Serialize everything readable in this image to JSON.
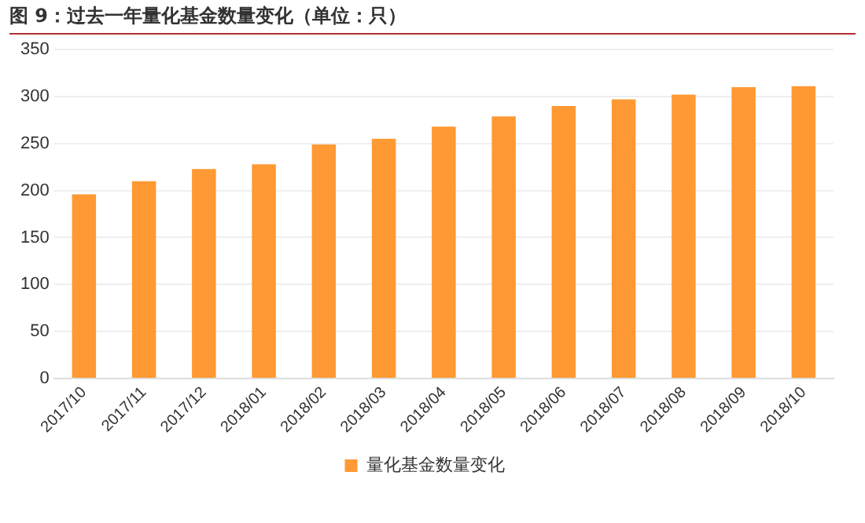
{
  "chart_data": {
    "type": "bar",
    "title": "图 9：过去一年量化基金数量变化（单位：只）",
    "categories": [
      "2017/10",
      "2017/11",
      "2017/12",
      "2018/01",
      "2018/02",
      "2018/03",
      "2018/04",
      "2018/05",
      "2018/06",
      "2018/07",
      "2018/08",
      "2018/09",
      "2018/10"
    ],
    "series": [
      {
        "name": "量化基金数量变化",
        "color": "#ff9933",
        "values": [
          196,
          210,
          223,
          228,
          249,
          255,
          268,
          279,
          290,
          297,
          302,
          310,
          311
        ]
      }
    ],
    "ylim": [
      0,
      350
    ],
    "yticks": [
      0,
      50,
      100,
      150,
      200,
      250,
      300,
      350
    ],
    "grid": "y",
    "legend": "bottom"
  }
}
